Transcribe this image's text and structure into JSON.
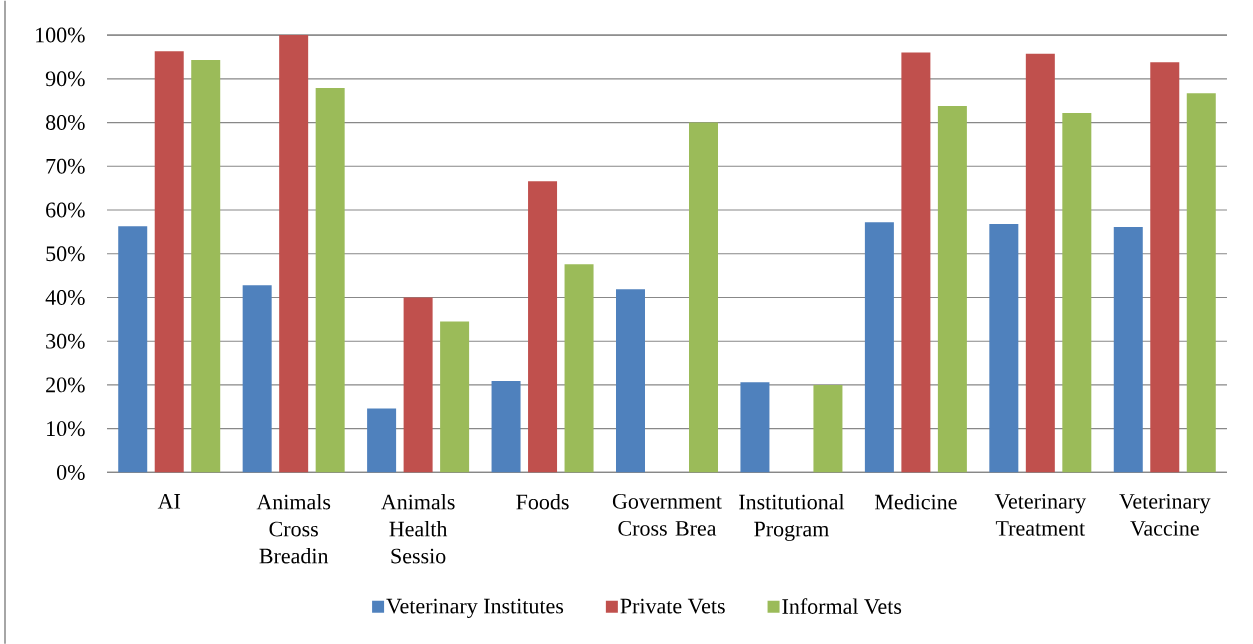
{
  "chart_data": {
    "type": "bar",
    "categories": [
      "AI",
      "Animals Cross Breadin",
      "Animals Health Sessio",
      "Foods",
      "Government Cross Brea",
      "Institutional Program",
      "Medicine",
      "Veterinary Treatment",
      "Veterinary Vaccine"
    ],
    "series": [
      {
        "name": "Veterinary Institutes",
        "color": "#4f81bd",
        "values": [
          56.3,
          42.8,
          14.6,
          20.9,
          41.9,
          20.6,
          57.2,
          56.8,
          56.1
        ]
      },
      {
        "name": "Private Vets",
        "color": "#c0504d",
        "values": [
          96.3,
          100,
          40,
          66.6,
          null,
          null,
          96,
          95.7,
          93.8
        ]
      },
      {
        "name": "Informal Vets",
        "color": "#9bbb59",
        "values": [
          94.3,
          87.9,
          34.5,
          47.6,
          80,
          20,
          83.8,
          82.2,
          86.7
        ]
      }
    ],
    "ylim": [
      0,
      100
    ],
    "yticks": [
      {
        "value": 0,
        "label": "0%"
      },
      {
        "value": 10,
        "label": "10%"
      },
      {
        "value": 20,
        "label": "20%"
      },
      {
        "value": 30,
        "label": "30%"
      },
      {
        "value": 40,
        "label": "40%"
      },
      {
        "value": 50,
        "label": "50%"
      },
      {
        "value": 60,
        "label": "60%"
      },
      {
        "value": 70,
        "label": "70%"
      },
      {
        "value": 80,
        "label": "80%"
      },
      {
        "value": 90,
        "label": "90%"
      },
      {
        "value": 100,
        "label": "100%"
      }
    ],
    "grid": "y",
    "legend": "bottom"
  }
}
